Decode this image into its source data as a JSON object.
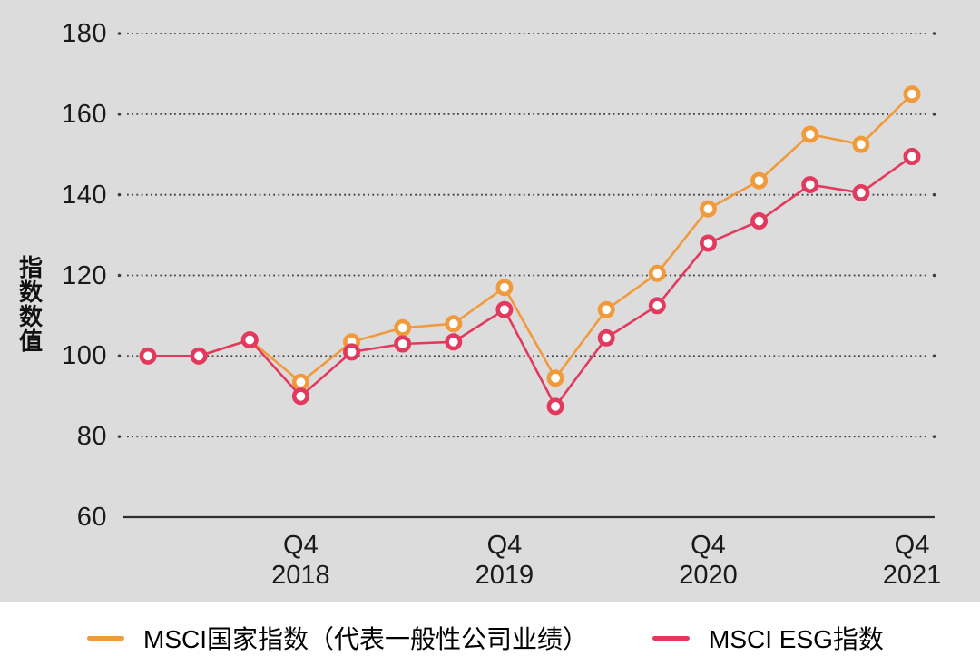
{
  "colors": {
    "plot_background": "#DCDCDC",
    "page_background": "#FFFFFF",
    "grid": "#3F3F3F",
    "axis": "#2E2E2E",
    "text": "#1A1A1A",
    "series_country": "#F09A3C",
    "series_esg": "#E23A5E",
    "marker_fill": "#FFFFFF"
  },
  "y_axis": {
    "title": "指数数值",
    "tick_labels": [
      "180",
      "160",
      "140",
      "120",
      "100",
      "80",
      "60"
    ],
    "tick_values": [
      180,
      160,
      140,
      120,
      100,
      80,
      60
    ]
  },
  "x_axis": {
    "tick_labels": [
      {
        "quarter": "Q4",
        "year": "2018",
        "category_index": 3
      },
      {
        "quarter": "Q4",
        "year": "2019",
        "category_index": 7
      },
      {
        "quarter": "Q4",
        "year": "2020",
        "category_index": 11
      },
      {
        "quarter": "Q4",
        "year": "2021",
        "category_index": 15
      }
    ]
  },
  "legend": {
    "items": [
      {
        "label": "MSCI国家指数（代表一般性公司业绩）",
        "color": "#F09A3C"
      },
      {
        "label": "MSCI ESG指数",
        "color": "#E23A5E"
      }
    ]
  },
  "chart_data": {
    "type": "line",
    "title": "",
    "xlabel": "",
    "ylabel": "指数数值",
    "ylim": [
      60,
      185
    ],
    "grid": "horizontal-dotted",
    "legend_position": "bottom",
    "categories": [
      "Q1 2018",
      "Q2 2018",
      "Q3 2018",
      "Q4 2018",
      "Q1 2019",
      "Q2 2019",
      "Q3 2019",
      "Q4 2019",
      "Q1 2020",
      "Q2 2020",
      "Q3 2020",
      "Q4 2020",
      "Q1 2021",
      "Q2 2021",
      "Q3 2021",
      "Q4 2021"
    ],
    "series": [
      {
        "name": "MSCI国家指数（代表一般性公司业绩）",
        "color": "#F09A3C",
        "values": [
          100,
          100,
          104,
          93.5,
          103.5,
          107,
          108,
          117,
          94.5,
          111.5,
          120.5,
          136.5,
          143.5,
          155,
          152.5,
          165
        ]
      },
      {
        "name": "MSCI ESG指数",
        "color": "#E23A5E",
        "values": [
          100,
          100,
          104,
          90,
          101,
          103,
          103.5,
          111.5,
          87.5,
          104.5,
          112.5,
          128,
          133.5,
          142.5,
          140.5,
          149.5
        ]
      }
    ]
  }
}
